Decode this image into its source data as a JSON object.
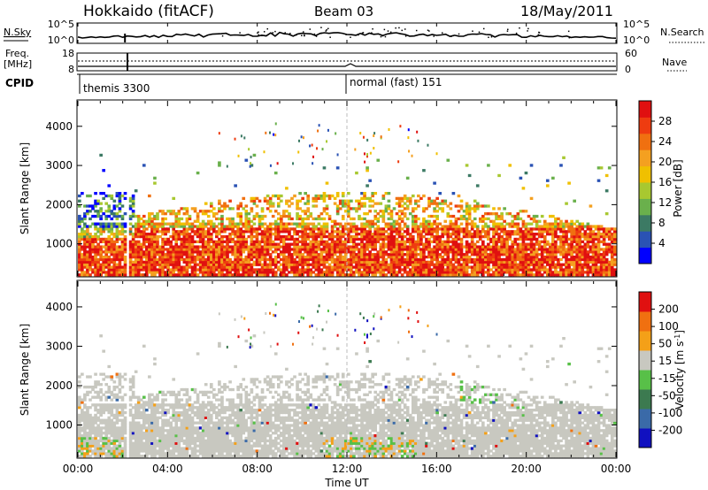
{
  "header": {
    "radar": "Hokkaido (fitACF)",
    "beam": "Beam 03",
    "date": "18/May/2011"
  },
  "chart_data": [
    {
      "type": "line",
      "name": "noise-panel",
      "left_label": "N.Sky",
      "right_label": "N.Search",
      "left_ticks": [
        "10^5",
        "10^0"
      ],
      "right_ticks": [
        "10^5",
        "10^0"
      ]
    },
    {
      "type": "line",
      "name": "freq-nave-panel",
      "left_label_top": "Freq.",
      "left_label_unit": "[MHz]",
      "right_label": "Nave",
      "left_ticks": [
        "18",
        "8"
      ],
      "right_ticks": [
        "60",
        "0"
      ]
    },
    {
      "type": "table",
      "name": "cpid-strip",
      "label": "CPID",
      "segments": [
        {
          "start_hour": 0,
          "text": "themis 3300"
        },
        {
          "start_hour": 12,
          "text": "normal (fast) 151"
        }
      ]
    },
    {
      "type": "heatmap",
      "name": "power",
      "ylabel": "Slant Range [km]",
      "yticks": [
        "4000",
        "3000",
        "2000",
        "1000"
      ],
      "ylim": [
        180,
        4650
      ],
      "xlim": [
        0,
        24
      ],
      "colorbar_label": "Power [dB]",
      "colorbar_ticks": [
        "28",
        "24",
        "20",
        "16",
        "12",
        "8",
        "4"
      ],
      "colors": [
        "#0000ff",
        "#2a52b4",
        "#3c7a64",
        "#6ab04c",
        "#a8c830",
        "#f0c000",
        "#f4a020",
        "#f07010",
        "#ee3c10",
        "#e01010"
      ]
    },
    {
      "type": "heatmap",
      "name": "velocity",
      "ylabel": "Slant Range [km]",
      "yticks": [
        "4000",
        "3000",
        "2000",
        "1000"
      ],
      "ylim": [
        180,
        4650
      ],
      "xlim": [
        0,
        24
      ],
      "colorbar_label": "Velocity [m s",
      "colorbar_unit_sup": "-1",
      "colorbar_ticks": [
        "200",
        "100",
        "50",
        "15",
        "-15",
        "-50",
        "-100",
        "-200"
      ],
      "colors": [
        "#1010c0",
        "#3a6aa8",
        "#3c7a50",
        "#58c048",
        "#c8c8c0",
        "#f4a018",
        "#f07010",
        "#e01010"
      ]
    }
  ],
  "xaxis": {
    "label": "Time UT",
    "ticks": [
      "00:00",
      "04:00",
      "08:00",
      "12:00",
      "16:00",
      "20:00",
      "00:00"
    ],
    "tick_hours": [
      0,
      4,
      8,
      12,
      16,
      20,
      24
    ]
  }
}
